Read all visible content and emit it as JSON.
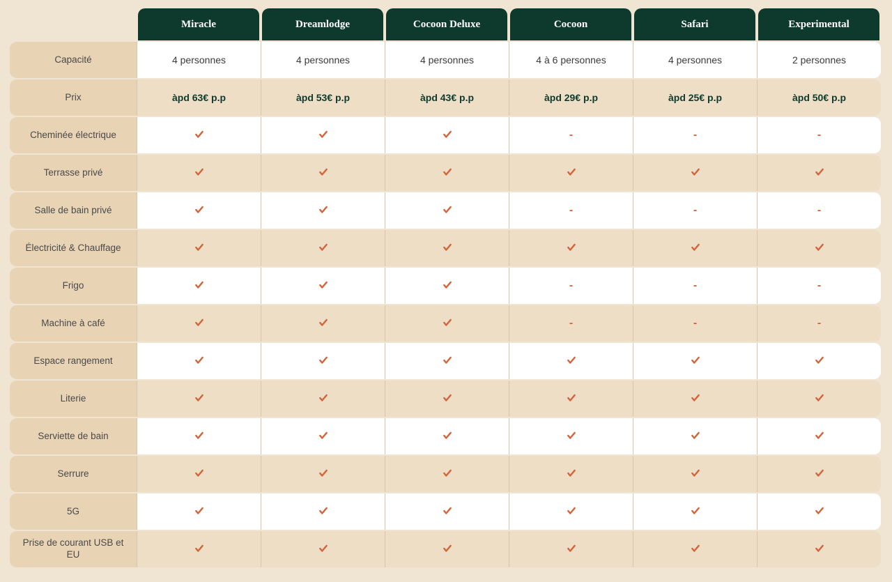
{
  "table": {
    "type": "comparison-table",
    "background_color": "#f0e5d3",
    "header_bg": "#0d3a2d",
    "header_text_color": "#ffffff",
    "row_label_bg": "#e8d3b5",
    "row_white_bg": "#ffffff",
    "row_tint_bg": "#efdec6",
    "check_color": "#d2653b",
    "dash_color": "#d2653b",
    "price_color": "#0d3a2d",
    "text_color": "#3a3a3a",
    "columns": [
      "Miracle",
      "Dreamlodge",
      "Cocoon Deluxe",
      "Cocoon",
      "Safari",
      "Experimental"
    ],
    "rows": [
      {
        "label": "Capacité",
        "kind": "text",
        "tint": false,
        "values": [
          "4 personnes",
          "4 personnes",
          "4 personnes",
          "4 à 6 personnes",
          "4 personnes",
          "2 personnes"
        ]
      },
      {
        "label": "Prix",
        "kind": "price",
        "tint": true,
        "values": [
          "àpd 63€ p.p",
          "àpd 53€ p.p",
          "àpd 43€ p.p",
          "àpd 29€ p.p",
          "àpd 25€ p.p",
          "àpd 50€ p.p"
        ]
      },
      {
        "label": "Cheminée électrique",
        "kind": "check",
        "tint": false,
        "values": [
          true,
          true,
          true,
          false,
          false,
          false
        ]
      },
      {
        "label": "Terrasse privé",
        "kind": "check",
        "tint": true,
        "values": [
          true,
          true,
          true,
          true,
          true,
          true
        ]
      },
      {
        "label": "Salle de bain privé",
        "kind": "check",
        "tint": false,
        "values": [
          true,
          true,
          true,
          false,
          false,
          false
        ]
      },
      {
        "label": "Électricité & Chauffage",
        "kind": "check",
        "tint": true,
        "values": [
          true,
          true,
          true,
          true,
          true,
          true
        ]
      },
      {
        "label": "Frigo",
        "kind": "check",
        "tint": false,
        "values": [
          true,
          true,
          true,
          false,
          false,
          false
        ]
      },
      {
        "label": "Machine à café",
        "kind": "check",
        "tint": true,
        "values": [
          true,
          true,
          true,
          false,
          false,
          false
        ]
      },
      {
        "label": "Espace rangement",
        "kind": "check",
        "tint": false,
        "values": [
          true,
          true,
          true,
          true,
          true,
          true
        ]
      },
      {
        "label": "Literie",
        "kind": "check",
        "tint": true,
        "values": [
          true,
          true,
          true,
          true,
          true,
          true
        ]
      },
      {
        "label": "Serviette de bain",
        "kind": "check",
        "tint": false,
        "values": [
          true,
          true,
          true,
          true,
          true,
          true
        ]
      },
      {
        "label": "Serrure",
        "kind": "check",
        "tint": true,
        "values": [
          true,
          true,
          true,
          true,
          true,
          true
        ]
      },
      {
        "label": "5G",
        "kind": "check",
        "tint": false,
        "values": [
          true,
          true,
          true,
          true,
          true,
          true
        ]
      },
      {
        "label": "Prise de courant USB et EU",
        "kind": "check",
        "tint": true,
        "values": [
          true,
          true,
          true,
          true,
          true,
          true
        ]
      }
    ]
  }
}
